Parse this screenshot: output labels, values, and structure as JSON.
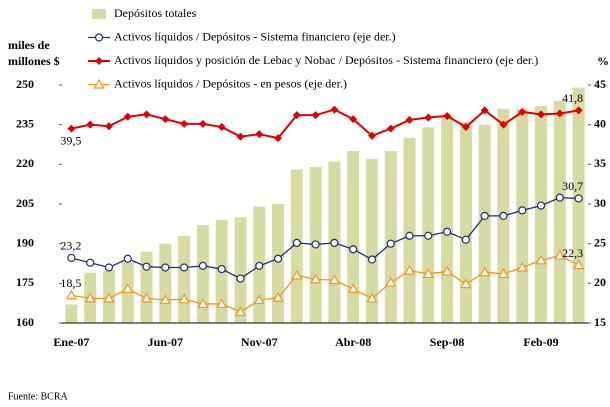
{
  "chart_data": {
    "type": "bar-line",
    "y_label": [
      "miles de",
      "millones $"
    ],
    "y2_label": "%",
    "source": "Fuente: BCRA",
    "categories": [
      "Ene-07",
      null,
      null,
      null,
      null,
      "Jun-07",
      null,
      null,
      null,
      null,
      "Nov-07",
      null,
      null,
      null,
      null,
      "Abr-08",
      null,
      null,
      null,
      null,
      "Sep-08",
      null,
      null,
      null,
      null,
      "Feb-09",
      null,
      null
    ],
    "ylim": [
      160,
      250
    ],
    "yticks": [
      160,
      175,
      190,
      205,
      220,
      235,
      250
    ],
    "y2lim": [
      15,
      45
    ],
    "y2ticks": [
      15,
      20,
      25,
      30,
      35,
      40,
      45
    ],
    "series": [
      {
        "name": "Depósitos totales",
        "type": "bar",
        "color": "#d6dba3",
        "values": [
          167,
          179,
          180,
          183,
          187,
          190,
          193,
          197,
          199,
          200,
          204,
          205,
          218,
          219,
          221,
          225,
          222,
          225,
          230,
          234,
          238,
          236,
          235,
          241,
          241,
          242,
          244,
          249
        ]
      },
      {
        "name": "Activos líquidos / Depósitos - Sistema financiero (eje der.)",
        "type": "line",
        "axis": "y2",
        "color": "#1f2f7a",
        "marker": "circle",
        "values": [
          23.2,
          22.6,
          22.0,
          23.1,
          22.1,
          22.0,
          22.0,
          22.2,
          21.8,
          20.6,
          22.2,
          23.1,
          25.1,
          24.9,
          25.1,
          24.3,
          23.0,
          25.0,
          26.0,
          26.0,
          26.5,
          25.5,
          28.5,
          28.5,
          29.2,
          29.8,
          30.8,
          30.7
        ],
        "value_labels": [
          "23,2",
          null,
          null,
          null,
          null,
          null,
          null,
          null,
          null,
          null,
          null,
          null,
          null,
          null,
          null,
          null,
          null,
          null,
          null,
          null,
          null,
          null,
          null,
          null,
          null,
          null,
          null,
          "30,7"
        ]
      },
      {
        "name": "Activos líquidos y posición de Lebac y Nobac / Depósitos - Sistema financiero (eje der.)",
        "type": "line",
        "axis": "y2",
        "color": "#e00000",
        "marker": "diamond",
        "values": [
          39.5,
          40.0,
          39.8,
          41.0,
          41.3,
          40.7,
          40.1,
          40.1,
          39.7,
          38.5,
          38.8,
          38.3,
          41.2,
          41.2,
          41.9,
          40.7,
          38.6,
          39.5,
          40.6,
          40.9,
          41.1,
          39.7,
          41.8,
          40.0,
          41.6,
          41.3,
          41.4,
          41.8
        ],
        "value_labels": [
          "39,5",
          null,
          null,
          null,
          null,
          null,
          null,
          null,
          null,
          null,
          null,
          null,
          null,
          null,
          null,
          null,
          null,
          null,
          null,
          null,
          null,
          null,
          null,
          null,
          null,
          null,
          null,
          "41,8"
        ]
      },
      {
        "name": "Activos líquidos / Depósitos - en pesos (eje der.)",
        "type": "line",
        "axis": "y2",
        "color": "#f7941d",
        "marker": "triangle",
        "values": [
          18.5,
          18.1,
          18.1,
          19.3,
          18.1,
          17.9,
          18.0,
          17.4,
          17.4,
          16.4,
          17.9,
          18.2,
          21.0,
          20.5,
          20.4,
          19.3,
          18.1,
          20.1,
          21.6,
          21.2,
          21.5,
          19.9,
          21.4,
          21.2,
          22.0,
          22.9,
          23.5,
          22.3
        ],
        "value_labels": [
          "18,5",
          null,
          null,
          null,
          null,
          null,
          null,
          null,
          null,
          null,
          null,
          null,
          null,
          null,
          null,
          null,
          null,
          null,
          null,
          null,
          null,
          null,
          null,
          null,
          null,
          null,
          null,
          "22,3"
        ]
      }
    ]
  }
}
